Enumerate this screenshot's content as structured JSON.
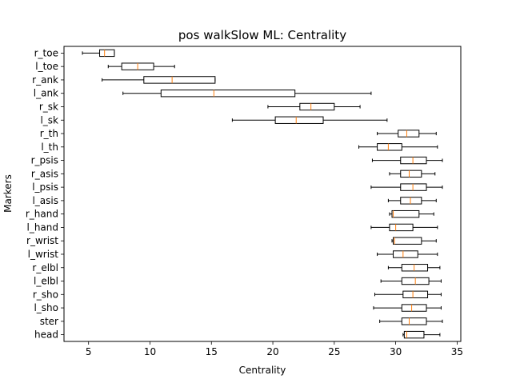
{
  "chart_data": {
    "type": "boxplot",
    "orientation": "horizontal",
    "title": "pos walkSlow ML: Centrality",
    "xlabel": "Centrality",
    "ylabel": "Markers",
    "xlim": [
      3.0,
      35.3
    ],
    "xticks": [
      5,
      10,
      15,
      20,
      25,
      30,
      35
    ],
    "grid": false,
    "colors": {
      "box": "#000000",
      "median": "#ff7f0e"
    },
    "boxes": [
      {
        "label": "r_toe",
        "whislo": 4.5,
        "q1": 5.9,
        "med": 6.3,
        "q3": 7.1,
        "whishi": 7.1
      },
      {
        "label": "l_toe",
        "whislo": 6.6,
        "q1": 7.7,
        "med": 9.0,
        "q3": 10.3,
        "whishi": 12.0
      },
      {
        "label": "r_ank",
        "whislo": 6.1,
        "q1": 9.5,
        "med": 11.8,
        "q3": 15.3,
        "whishi": 15.3
      },
      {
        "label": "l_ank",
        "whislo": 7.8,
        "q1": 10.9,
        "med": 15.2,
        "q3": 21.8,
        "whishi": 28.0
      },
      {
        "label": "r_sk",
        "whislo": 19.6,
        "q1": 22.2,
        "med": 23.1,
        "q3": 25.0,
        "whishi": 27.1
      },
      {
        "label": "l_sk",
        "whislo": 16.7,
        "q1": 20.2,
        "med": 21.9,
        "q3": 24.1,
        "whishi": 29.3
      },
      {
        "label": "r_th",
        "whislo": 28.5,
        "q1": 30.2,
        "med": 30.9,
        "q3": 31.9,
        "whishi": 33.3
      },
      {
        "label": "l_th",
        "whislo": 27.0,
        "q1": 28.5,
        "med": 29.4,
        "q3": 30.5,
        "whishi": 33.4
      },
      {
        "label": "r_psis",
        "whislo": 28.1,
        "q1": 30.4,
        "med": 31.4,
        "q3": 32.5,
        "whishi": 33.8
      },
      {
        "label": "r_asis",
        "whislo": 29.5,
        "q1": 30.4,
        "med": 31.1,
        "q3": 32.1,
        "whishi": 33.2
      },
      {
        "label": "l_psis",
        "whislo": 28.0,
        "q1": 30.4,
        "med": 31.4,
        "q3": 32.5,
        "whishi": 33.8
      },
      {
        "label": "l_asis",
        "whislo": 29.4,
        "q1": 30.4,
        "med": 31.2,
        "q3": 32.1,
        "whishi": 33.3
      },
      {
        "label": "r_hand",
        "whislo": 29.5,
        "q1": 29.7,
        "med": 29.8,
        "q3": 31.9,
        "whishi": 33.1
      },
      {
        "label": "l_hand",
        "whislo": 28.0,
        "q1": 29.5,
        "med": 30.0,
        "q3": 31.4,
        "whishi": 33.4
      },
      {
        "label": "r_wrist",
        "whislo": 29.7,
        "q1": 29.8,
        "med": 29.9,
        "q3": 32.1,
        "whishi": 33.3
      },
      {
        "label": "l_wrist",
        "whislo": 28.5,
        "q1": 29.8,
        "med": 30.6,
        "q3": 31.8,
        "whishi": 33.4
      },
      {
        "label": "r_elbl",
        "whislo": 29.4,
        "q1": 30.5,
        "med": 31.5,
        "q3": 32.6,
        "whishi": 33.6
      },
      {
        "label": "l_elbl",
        "whislo": 28.8,
        "q1": 30.5,
        "med": 31.6,
        "q3": 32.7,
        "whishi": 33.7
      },
      {
        "label": "r_sho",
        "whislo": 28.3,
        "q1": 30.6,
        "med": 31.4,
        "q3": 32.6,
        "whishi": 33.7
      },
      {
        "label": "l_sho",
        "whislo": 28.2,
        "q1": 30.5,
        "med": 31.3,
        "q3": 32.5,
        "whishi": 33.7
      },
      {
        "label": "ster",
        "whislo": 28.7,
        "q1": 30.5,
        "med": 31.1,
        "q3": 32.5,
        "whishi": 33.8
      },
      {
        "label": "head",
        "whislo": 30.6,
        "q1": 30.7,
        "med": 30.9,
        "q3": 32.3,
        "whishi": 33.6
      }
    ]
  }
}
